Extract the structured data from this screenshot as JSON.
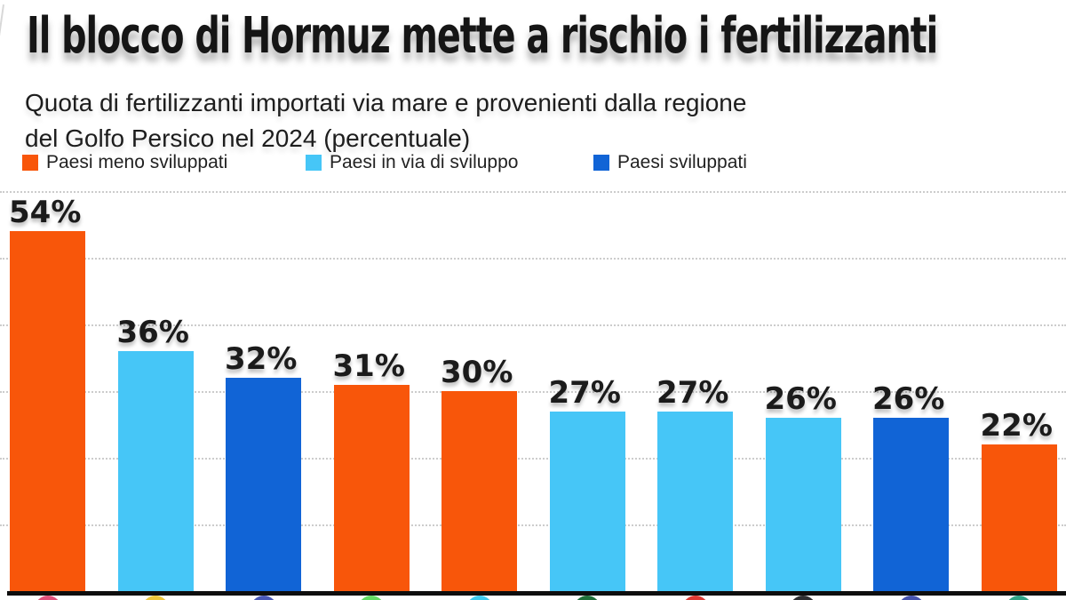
{
  "header": {
    "title": "Il blocco di Hormuz mette a rischio i fertilizzanti",
    "subtitle_line1": "Quota di fertilizzanti importati via mare e provenienti dalla regione",
    "subtitle_line2": "del Golfo Persico nel 2024 (percentuale)"
  },
  "legend": {
    "items": [
      {
        "label": "Paesi meno sviluppati",
        "color": "#F8560A"
      },
      {
        "label": "Paesi in via di sviluppo",
        "color": "#46C6F7"
      },
      {
        "label": "Paesi sviluppati",
        "color": "#1164D6"
      }
    ]
  },
  "colors": {
    "orange": "#F8560A",
    "light_blue": "#46C6F7",
    "dark_blue": "#1164D6",
    "axis": "#0e0e0e",
    "gridline": "#cccccc",
    "text": "#151515"
  },
  "chart_data": {
    "type": "bar",
    "title": "Il blocco di Hormuz mette a rischio i fertilizzanti",
    "subtitle": "Quota di fertilizzanti importati via mare e provenienti dalla regione del Golfo Persico nel 2024 (percentuale)",
    "ylabel": "percentuale",
    "ylim": [
      0,
      60
    ],
    "gridline_step": 10,
    "grid": true,
    "legend_position": "top",
    "categories_note": "country flag icons, cropped at bottom edge - names not visible",
    "bars": [
      {
        "value": 54,
        "label": "54%",
        "group": "Paesi meno sviluppati",
        "color": "#F8560A",
        "flag_color": "#E0507A"
      },
      {
        "value": 36,
        "label": "36%",
        "group": "Paesi in via di sviluppo",
        "color": "#46C6F7",
        "flag_color": "#EDC73C"
      },
      {
        "value": 32,
        "label": "32%",
        "group": "Paesi sviluppati",
        "color": "#1164D6",
        "flag_color": "#4959B8"
      },
      {
        "value": 31,
        "label": "31%",
        "group": "Paesi meno sviluppati",
        "color": "#F8560A",
        "flag_color": "#63DB63"
      },
      {
        "value": 30,
        "label": "30%",
        "group": "Paesi meno sviluppati",
        "color": "#F8560A",
        "flag_color": "#3EC9EE"
      },
      {
        "value": 27,
        "label": "27%",
        "group": "Paesi in via di sviluppo",
        "color": "#46C6F7",
        "flag_color": "#20713B"
      },
      {
        "value": 27,
        "label": "27%",
        "group": "Paesi in via di sviluppo",
        "color": "#46C6F7",
        "flag_color": "#DE3A34"
      },
      {
        "value": 26,
        "label": "26%",
        "group": "Paesi in via di sviluppo",
        "color": "#46C6F7",
        "flag_color": "#2E2E31"
      },
      {
        "value": 26,
        "label": "26%",
        "group": "Paesi sviluppati",
        "color": "#1164D6",
        "flag_color": "#4653AF"
      },
      {
        "value": 22,
        "label": "22%",
        "group": "Paesi meno sviluppati",
        "color": "#F8560A",
        "flag_color": "#2FA487"
      }
    ]
  }
}
